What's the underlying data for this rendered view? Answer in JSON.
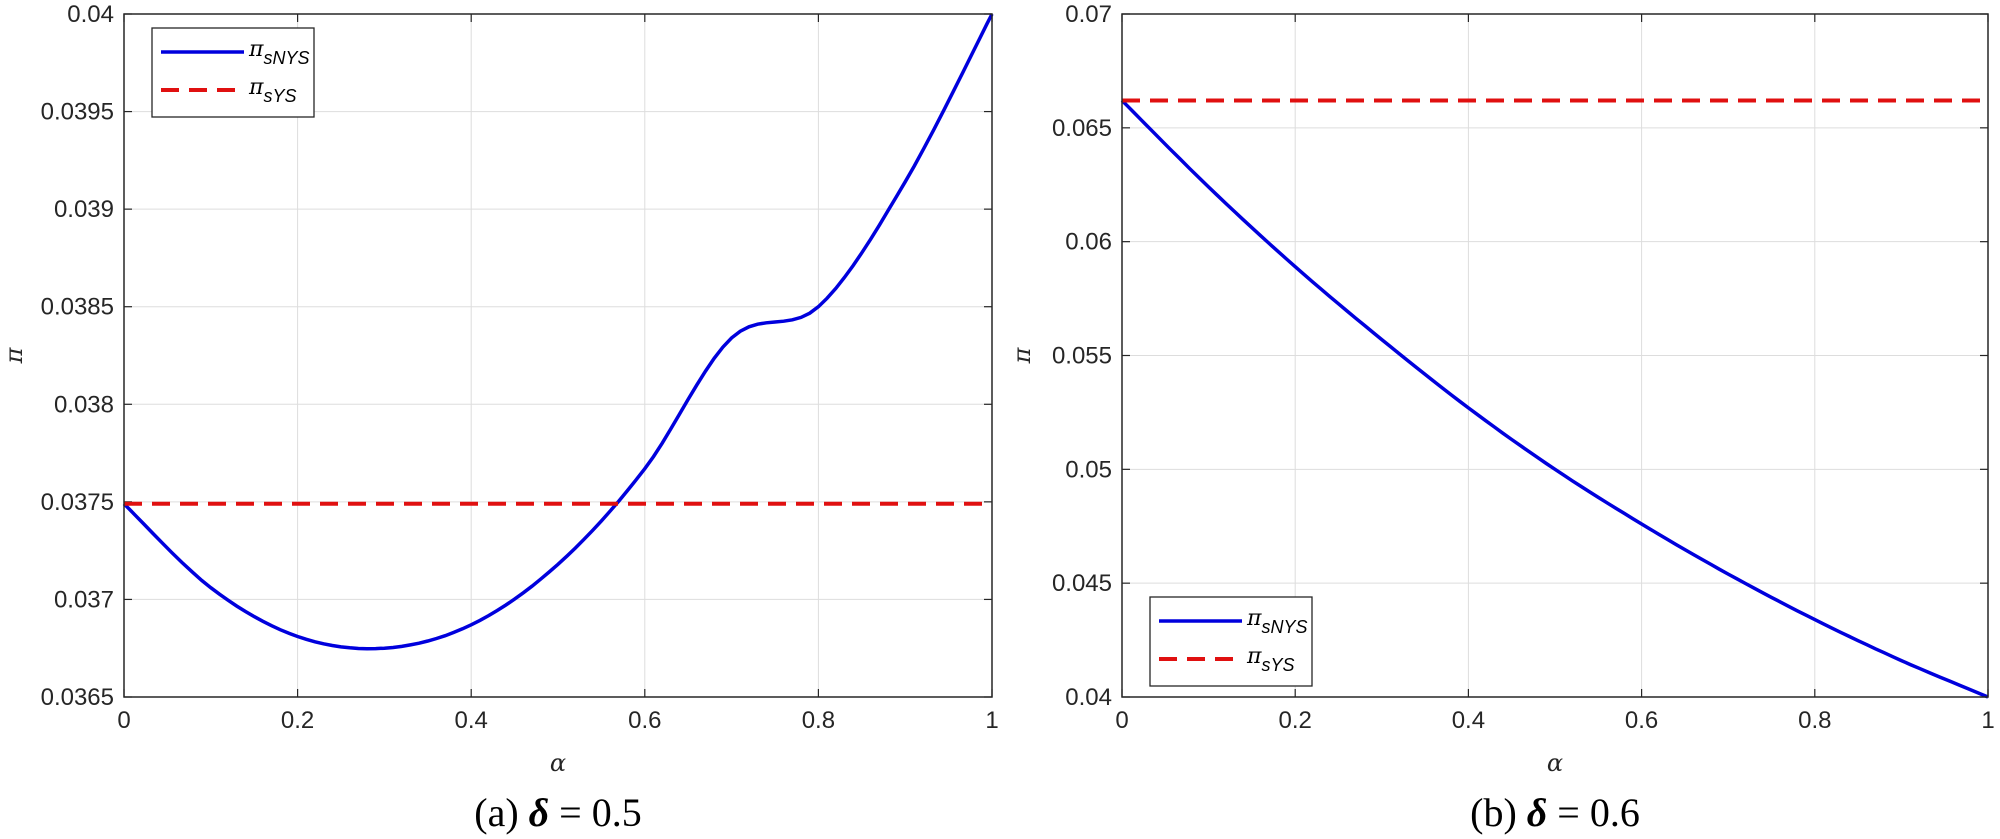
{
  "chart_data": [
    {
      "type": "line",
      "caption": {
        "prefix": "(a) ",
        "symbol": "δ",
        "suffix": " = 0.5"
      },
      "xlabel": "α",
      "ylabel": "π",
      "xlim": [
        0,
        1
      ],
      "ylim": [
        0.0365,
        0.04
      ],
      "xticks": [
        0,
        0.2,
        0.4,
        0.6,
        0.8,
        1
      ],
      "xtick_labels": [
        "0",
        "0.2",
        "0.4",
        "0.6",
        "0.8",
        "1"
      ],
      "yticks": [
        0.0365,
        0.037,
        0.0375,
        0.038,
        0.0385,
        0.039,
        0.0395,
        0.04
      ],
      "ytick_labels": [
        "0.0365",
        "0.037",
        "0.0375",
        "0.038",
        "0.0385",
        "0.039",
        "0.0395",
        "0.04"
      ],
      "grid": true,
      "legend_position": "top-left",
      "series": [
        {
          "name_main": "π",
          "name_sub": "sNYS",
          "color": "#0000dd",
          "style": "solid",
          "x": [
            0,
            0.1,
            0.2,
            0.3,
            0.4,
            0.5,
            0.6,
            0.7,
            0.8,
            0.9,
            1.0
          ],
          "values": [
            0.03749,
            0.03706,
            0.03681,
            0.03675,
            0.03687,
            0.03718,
            0.03767,
            0.03834,
            0.0385,
            0.03914,
            0.04
          ]
        },
        {
          "name_main": "π",
          "name_sub": "sYS",
          "color": "#e01010",
          "style": "dashed",
          "x": [
            0,
            1
          ],
          "values": [
            0.03749,
            0.03749
          ]
        }
      ]
    },
    {
      "type": "line",
      "caption": {
        "prefix": "(b) ",
        "symbol": "δ",
        "suffix": " = 0.6"
      },
      "xlabel": "α",
      "ylabel": "π",
      "xlim": [
        0,
        1
      ],
      "ylim": [
        0.04,
        0.07
      ],
      "xticks": [
        0,
        0.2,
        0.4,
        0.6,
        0.8,
        1
      ],
      "xtick_labels": [
        "0",
        "0.2",
        "0.4",
        "0.6",
        "0.8",
        "1"
      ],
      "yticks": [
        0.04,
        0.045,
        0.05,
        0.055,
        0.06,
        0.065,
        0.07
      ],
      "ytick_labels": [
        "0.04",
        "0.045",
        "0.05",
        "0.055",
        "0.06",
        "0.065",
        "0.07"
      ],
      "grid": true,
      "legend_position": "bottom-left",
      "series": [
        {
          "name_main": "π",
          "name_sub": "sNYS",
          "color": "#0000dd",
          "style": "solid",
          "x": [
            0,
            0.1,
            0.2,
            0.3,
            0.4,
            0.5,
            0.6,
            0.7,
            0.8,
            0.9,
            1.0
          ],
          "values": [
            0.0662,
            0.0624,
            0.0589,
            0.0557,
            0.0527,
            0.05,
            0.0476,
            0.0454,
            0.0434,
            0.0416,
            0.04
          ]
        },
        {
          "name_main": "π",
          "name_sub": "sYS",
          "color": "#e01010",
          "style": "dashed",
          "x": [
            0,
            1
          ],
          "values": [
            0.0662,
            0.0662
          ]
        }
      ]
    }
  ]
}
